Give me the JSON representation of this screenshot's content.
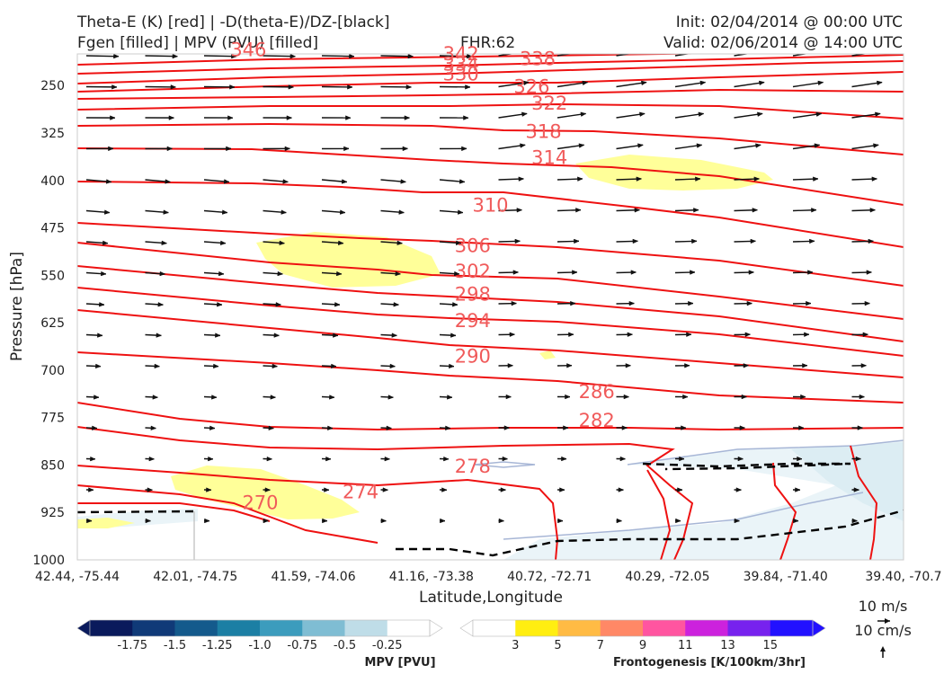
{
  "header": {
    "title_left_1": "Theta-E (K) [red] | -D(theta-E)/DZ-[black]",
    "title_left_2": "Fgen [filled] | MPV (PVU) [filled]",
    "fhr": "FHR:62",
    "init": "Init: 02/04/2014 @ 00:00 UTC",
    "valid": "Valid: 02/06/2014 @ 14:00 UTC"
  },
  "colors": {
    "theta_e": "#ee1111",
    "stability": "#000000",
    "fgen_low": "#ffff99",
    "mpv_light": "#e6f3f7",
    "mpv_line": "#a7b6d6"
  },
  "chart_data": {
    "type": "cross-section",
    "xlabel": "Latitude,Longitude",
    "ylabel": "Pressure [hPa]",
    "x_ticks": [
      "42.44, -75.44",
      "42.01, -74.75",
      "41.59, -74.06",
      "41.16, -73.38",
      "40.72, -72.71",
      "40.29, -72.05",
      "39.84, -71.40",
      "39.40, -70.7"
    ],
    "y_ticks": [
      250,
      325,
      400,
      475,
      550,
      625,
      700,
      775,
      850,
      925,
      1000
    ],
    "ylim": [
      1000,
      200
    ],
    "theta_e_labels": [
      {
        "value": "346",
        "x_index": 2.9,
        "pressure": 204
      },
      {
        "value": "342",
        "x_index": 6.5,
        "pressure": 212
      },
      {
        "value": "338",
        "x_index": 7.8,
        "pressure": 222
      },
      {
        "value": "334",
        "x_index": 6.5,
        "pressure": 233
      },
      {
        "value": "330",
        "x_index": 6.5,
        "pressure": 252
      },
      {
        "value": "326",
        "x_index": 7.7,
        "pressure": 277
      },
      {
        "value": "322",
        "x_index": 8.0,
        "pressure": 310
      },
      {
        "value": "318",
        "x_index": 7.9,
        "pressure": 366
      },
      {
        "value": "314",
        "x_index": 8.0,
        "pressure": 418
      },
      {
        "value": "310",
        "x_index": 7.0,
        "pressure": 512
      },
      {
        "value": "306",
        "x_index": 6.7,
        "pressure": 592
      },
      {
        "value": "302",
        "x_index": 6.7,
        "pressure": 642
      },
      {
        "value": "298",
        "x_index": 6.7,
        "pressure": 688
      },
      {
        "value": "294",
        "x_index": 6.7,
        "pressure": 740
      },
      {
        "value": "290",
        "x_index": 6.7,
        "pressure": 810
      },
      {
        "value": "286",
        "x_index": 8.8,
        "pressure": 880
      },
      {
        "value": "282",
        "x_index": 8.8,
        "pressure": 937
      },
      {
        "value": "278",
        "x_index": 6.7,
        "pressure": 1028
      },
      {
        "value": "274",
        "x_index": 4.8,
        "pressure": 1078
      },
      {
        "value": "270",
        "x_index": 3.1,
        "pressure": 1100
      }
    ],
    "mpv_colorbar": {
      "label": "MPV [PVU]",
      "ticks": [
        "-1.75",
        "-1.5",
        "-1.25",
        "-1.0",
        "-0.75",
        "-0.5",
        "-0.25"
      ],
      "colors": [
        "#0a1a5c",
        "#103a78",
        "#145a8c",
        "#1c7fa4",
        "#3c9cbd",
        "#7fbdd3",
        "#bfdde8",
        "#ffffff"
      ]
    },
    "fgen_colorbar": {
      "label": "Frontogenesis [K/100km/3hr]",
      "ticks": [
        "3",
        "5",
        "7",
        "9",
        "11",
        "13",
        "15"
      ],
      "colors": [
        "#ffffff",
        "#ffee11",
        "#ffbb44",
        "#ff8866",
        "#ff55a0",
        "#cc22dd",
        "#7722ee",
        "#2211ff"
      ]
    },
    "wind_key": {
      "horizontal": "10 m/s",
      "vertical": "10 cm/s"
    }
  }
}
